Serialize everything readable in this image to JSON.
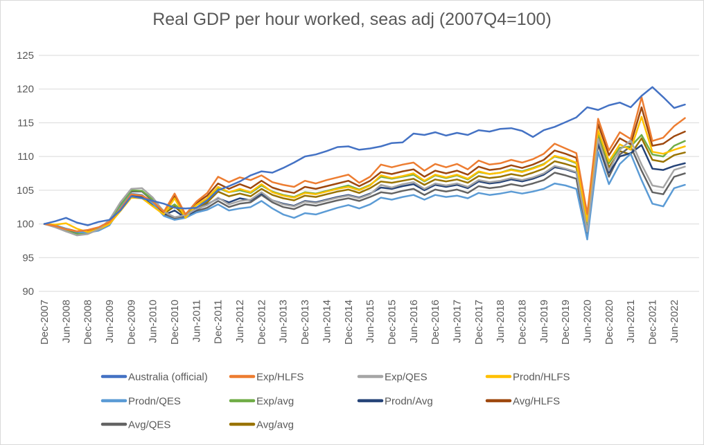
{
  "chart_data": {
    "type": "line",
    "title": "Real GDP per hour worked, seas adj (2007Q4=100)",
    "xlabel": "",
    "ylabel": "",
    "ylim": [
      90,
      125
    ],
    "yticks": [
      90,
      95,
      100,
      105,
      110,
      115,
      120,
      125
    ],
    "grid": "horizontal-only",
    "gridline_color": "#d9d9d9",
    "axis_text_color": "#595959",
    "legend_position": "bottom",
    "x_frequency": "quarterly",
    "x_tick_labels": [
      "Dec-2007",
      "Jun-2008",
      "Dec-2008",
      "Jun-2009",
      "Dec-2009",
      "Jun-2010",
      "Dec-2010",
      "Jun-2011",
      "Dec-2011",
      "Jun-2012",
      "Dec-2012",
      "Jun-2013",
      "Dec-2013",
      "Jun-2014",
      "Dec-2014",
      "Jun-2015",
      "Dec-2015",
      "Jun-2016",
      "Dec-2016",
      "Jun-2017",
      "Dec-2017",
      "Jun-2018",
      "Dec-2018",
      "Jun-2019",
      "Dec-2019",
      "Jun-2020",
      "Dec-2020",
      "Jun-2021",
      "Dec-2021",
      "Jun-2022"
    ],
    "points_per_tick": 2,
    "series": [
      {
        "name": "Australia (official)",
        "color": "#4472C4",
        "values": [
          100.0,
          100.4,
          100.9,
          100.2,
          99.8,
          100.3,
          100.6,
          102.0,
          104.1,
          103.8,
          103.4,
          103.0,
          102.4,
          102.3,
          102.4,
          103.5,
          105.0,
          105.6,
          106.3,
          107.2,
          107.8,
          107.6,
          108.3,
          109.1,
          110.0,
          110.3,
          110.8,
          111.4,
          111.5,
          111.0,
          111.2,
          111.5,
          112.0,
          112.1,
          113.4,
          113.2,
          113.6,
          113.1,
          113.5,
          113.2,
          113.9,
          113.7,
          114.1,
          114.2,
          113.8,
          112.9,
          113.9,
          114.4,
          115.1,
          115.8,
          117.3,
          116.9,
          117.6,
          118.0,
          117.3,
          119.0,
          120.3,
          118.8,
          117.2,
          117.7
        ]
      },
      {
        "name": "Exp/HLFS",
        "color": "#ED7D31",
        "values": [
          100.0,
          99.7,
          99.2,
          98.9,
          99.1,
          99.5,
          100.3,
          102.2,
          104.4,
          104.2,
          103.3,
          101.8,
          104.5,
          101.4,
          103.3,
          104.6,
          107.0,
          106.2,
          106.9,
          106.5,
          107.2,
          106.2,
          105.8,
          105.5,
          106.4,
          106.0,
          106.5,
          106.9,
          107.3,
          106.1,
          107.0,
          108.8,
          108.4,
          108.8,
          109.1,
          107.9,
          108.9,
          108.4,
          108.9,
          108.1,
          109.4,
          108.8,
          109.0,
          109.5,
          109.1,
          109.6,
          110.4,
          111.9,
          111.2,
          110.5,
          101.5,
          115.6,
          110.9,
          113.6,
          112.6,
          118.8,
          112.3,
          112.8,
          114.5,
          115.7
        ]
      },
      {
        "name": "Exp/QES",
        "color": "#A5A5A5",
        "values": [
          100.0,
          99.5,
          98.9,
          98.3,
          98.5,
          99.2,
          100.6,
          103.2,
          105.2,
          105.3,
          103.9,
          101.8,
          101.0,
          101.3,
          102.2,
          102.8,
          103.9,
          102.9,
          103.4,
          103.6,
          104.7,
          103.5,
          102.9,
          102.6,
          103.3,
          103.1,
          103.5,
          103.9,
          104.2,
          103.8,
          104.4,
          105.8,
          105.4,
          105.9,
          106.2,
          105.2,
          106.0,
          105.7,
          106.0,
          105.5,
          106.5,
          106.2,
          106.4,
          106.8,
          106.5,
          106.9,
          107.5,
          108.6,
          108.2,
          107.7,
          98.9,
          112.6,
          107.9,
          111.0,
          112.4,
          108.8,
          105.7,
          105.4,
          108.0,
          108.5
        ]
      },
      {
        "name": "Prodn/HLFS",
        "color": "#FFC000",
        "values": [
          100.0,
          99.9,
          100.1,
          99.3,
          98.8,
          99.2,
          100.0,
          101.9,
          103.9,
          103.8,
          102.6,
          101.4,
          103.8,
          100.9,
          102.8,
          103.8,
          105.5,
          104.7,
          105.2,
          104.7,
          105.9,
          104.7,
          104.2,
          103.9,
          104.6,
          104.4,
          104.8,
          105.2,
          105.5,
          105.0,
          105.7,
          107.2,
          106.8,
          107.1,
          107.5,
          106.4,
          107.3,
          106.9,
          107.3,
          106.7,
          107.8,
          107.4,
          107.6,
          108.0,
          107.7,
          108.2,
          108.8,
          110.1,
          109.7,
          109.1,
          100.4,
          113.9,
          109.3,
          111.8,
          111.0,
          115.9,
          110.7,
          110.4,
          111.0,
          111.5
        ]
      },
      {
        "name": "Prodn/QES",
        "color": "#5B9BD5",
        "values": [
          100.0,
          99.8,
          99.3,
          98.8,
          98.7,
          99.0,
          99.8,
          102.4,
          104.5,
          104.3,
          103.0,
          101.2,
          100.6,
          100.9,
          101.7,
          102.1,
          102.9,
          102.0,
          102.3,
          102.5,
          103.4,
          102.3,
          101.4,
          100.9,
          101.6,
          101.4,
          101.9,
          102.4,
          102.8,
          102.3,
          102.9,
          103.9,
          103.6,
          104.0,
          104.3,
          103.6,
          104.3,
          104.0,
          104.2,
          103.8,
          104.6,
          104.3,
          104.5,
          104.8,
          104.5,
          104.8,
          105.2,
          106.0,
          105.7,
          105.2,
          97.7,
          110.7,
          105.9,
          108.9,
          110.4,
          106.5,
          103.0,
          102.6,
          105.3,
          105.8
        ]
      },
      {
        "name": "Exp/avg",
        "color": "#70AD47",
        "values": [
          100.0,
          99.6,
          99.0,
          98.5,
          98.7,
          99.3,
          100.4,
          102.7,
          105.0,
          104.9,
          103.6,
          101.9,
          102.9,
          101.5,
          102.8,
          103.7,
          105.3,
          104.7,
          105.0,
          104.6,
          105.7,
          104.8,
          104.3,
          104.0,
          104.7,
          104.5,
          104.9,
          105.3,
          105.7,
          105.1,
          105.8,
          107.0,
          106.7,
          107.0,
          107.3,
          106.3,
          107.2,
          106.8,
          107.2,
          106.6,
          107.7,
          107.4,
          107.6,
          108.1,
          107.8,
          108.3,
          108.9,
          110.0,
          109.6,
          109.0,
          100.1,
          113.4,
          109.0,
          111.3,
          111.5,
          113.2,
          110.3,
          110.0,
          111.6,
          112.3
        ]
      },
      {
        "name": "Prodn/Avg",
        "color": "#264478",
        "values": [
          100.0,
          99.8,
          99.1,
          98.7,
          98.8,
          99.1,
          99.9,
          102.1,
          104.2,
          104.0,
          102.8,
          101.3,
          102.0,
          100.9,
          102.1,
          102.9,
          103.8,
          103.2,
          103.8,
          103.5,
          104.5,
          103.5,
          103.0,
          102.7,
          103.4,
          103.2,
          103.6,
          104.0,
          104.3,
          103.9,
          104.5,
          105.4,
          105.2,
          105.6,
          105.9,
          105.0,
          105.8,
          105.5,
          105.8,
          105.3,
          106.3,
          106.0,
          106.2,
          106.6,
          106.3,
          106.7,
          107.3,
          108.4,
          108.1,
          107.6,
          99.2,
          112.0,
          107.6,
          110.0,
          110.5,
          111.7,
          108.2,
          108.0,
          108.6,
          109.0
        ]
      },
      {
        "name": "Avg/HLFS",
        "color": "#9E480E",
        "values": [
          100.0,
          99.8,
          99.3,
          98.9,
          99.0,
          99.4,
          100.2,
          102.1,
          104.3,
          104.0,
          103.0,
          101.6,
          104.1,
          101.2,
          103.1,
          104.2,
          106.0,
          105.2,
          105.9,
          105.3,
          106.4,
          105.4,
          104.9,
          104.6,
          105.5,
          105.2,
          105.6,
          106.0,
          106.4,
          105.6,
          106.4,
          107.7,
          107.4,
          107.8,
          108.1,
          107.0,
          107.9,
          107.5,
          107.9,
          107.3,
          108.5,
          108.0,
          108.2,
          108.7,
          108.3,
          108.8,
          109.5,
          110.9,
          110.4,
          109.8,
          101.1,
          114.8,
          110.2,
          112.7,
          111.8,
          117.3,
          111.6,
          111.9,
          113.0,
          113.7
        ]
      },
      {
        "name": "Avg/QES",
        "color": "#636363",
        "values": [
          100.0,
          99.6,
          98.9,
          98.4,
          98.6,
          99.1,
          100.2,
          102.8,
          104.8,
          104.8,
          103.4,
          101.5,
          100.8,
          101.1,
          101.9,
          102.4,
          103.4,
          102.5,
          103.0,
          103.2,
          104.3,
          103.2,
          102.5,
          102.2,
          102.9,
          102.7,
          103.1,
          103.5,
          103.8,
          103.4,
          104.0,
          104.7,
          104.5,
          104.9,
          105.2,
          104.3,
          105.1,
          104.8,
          105.1,
          104.6,
          105.6,
          105.3,
          105.5,
          105.9,
          105.6,
          106.0,
          106.5,
          107.6,
          107.2,
          106.7,
          98.3,
          111.8,
          107.0,
          110.3,
          111.5,
          107.9,
          104.7,
          104.4,
          107.0,
          107.5
        ]
      },
      {
        "name": "Avg/avg",
        "color": "#997300",
        "values": [
          100.0,
          99.7,
          99.1,
          98.7,
          98.8,
          99.2,
          100.1,
          102.4,
          104.3,
          104.1,
          103.0,
          101.5,
          102.6,
          101.1,
          102.4,
          103.2,
          104.8,
          104.1,
          104.5,
          104.1,
          105.2,
          104.3,
          103.8,
          103.5,
          104.2,
          104.0,
          104.4,
          104.8,
          105.1,
          104.6,
          105.3,
          106.3,
          106.1,
          106.4,
          106.7,
          105.8,
          106.6,
          106.3,
          106.6,
          106.1,
          107.1,
          106.8,
          107.0,
          107.4,
          107.1,
          107.6,
          108.2,
          109.3,
          108.9,
          108.4,
          99.9,
          112.8,
          108.4,
          110.8,
          110.3,
          112.7,
          109.5,
          109.2,
          110.2,
          110.6
        ]
      }
    ]
  }
}
